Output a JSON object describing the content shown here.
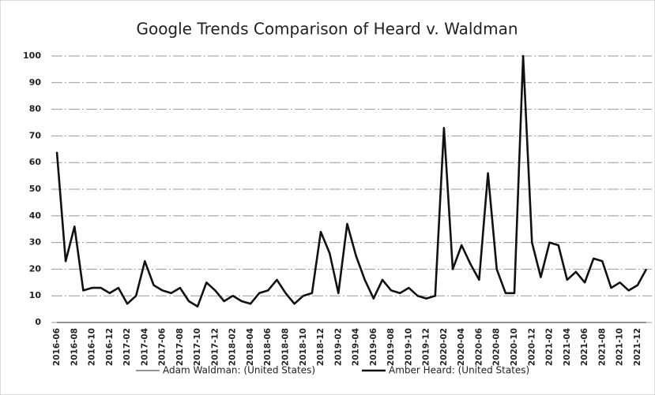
{
  "chart_data": {
    "type": "line",
    "title": "Google Trends Comparison of Heard v. Waldman",
    "categories": [
      "2016-06",
      null,
      "2016-08",
      null,
      "2016-10",
      null,
      "2016-12",
      null,
      "2017-02",
      null,
      "2017-04",
      null,
      "2017-06",
      null,
      "2017-08",
      null,
      "2017-10",
      null,
      "2017-12",
      null,
      "2018-02",
      null,
      "2018-04",
      null,
      "2018-06",
      null,
      "2018-08",
      null,
      "2018-10",
      null,
      "2018-12",
      null,
      "2019-02",
      null,
      "2019-04",
      null,
      "2019-06",
      null,
      "2019-08",
      null,
      "2019-10",
      null,
      "2019-12",
      null,
      "2020-02",
      null,
      "2020-04",
      null,
      "2020-06",
      null,
      "2020-08",
      null,
      "2020-10",
      null,
      "2020-12",
      null,
      "2021-02",
      null,
      "2021-04",
      null,
      "2021-06",
      null,
      "2021-08",
      null,
      "2021-10",
      null,
      "2021-12",
      null
    ],
    "series": [
      {
        "name": "Adam Waldman: (United States)",
        "color": "#555555",
        "width": 1.2,
        "values": [
          0,
          0,
          0,
          0,
          0,
          0,
          0,
          0,
          0,
          0,
          0,
          0,
          0,
          0,
          0,
          0,
          0,
          0,
          0,
          0,
          0,
          0,
          0,
          0,
          0,
          0,
          0,
          0,
          0,
          0,
          0,
          0,
          0,
          0,
          0,
          0,
          0,
          0,
          0,
          0,
          0,
          0,
          0,
          0,
          0,
          0,
          0,
          0,
          0,
          0,
          0,
          0,
          0,
          0,
          0,
          0,
          0,
          0,
          0,
          0,
          0,
          0,
          0,
          0,
          0,
          0,
          0,
          0
        ]
      },
      {
        "name": "Amber Heard: (United States)",
        "color": "#111111",
        "width": 2.6,
        "values": [
          64,
          23,
          36,
          12,
          13,
          13,
          11,
          13,
          7,
          10,
          23,
          14,
          12,
          11,
          13,
          8,
          6,
          15,
          12,
          8,
          10,
          8,
          7,
          11,
          12,
          16,
          11,
          7,
          10,
          11,
          34,
          26,
          11,
          37,
          25,
          16,
          9,
          16,
          12,
          11,
          13,
          10,
          9,
          10,
          73,
          20,
          29,
          22,
          16,
          56,
          20,
          11,
          11,
          100,
          30,
          17,
          30,
          29,
          16,
          19,
          15,
          24,
          23,
          13,
          15,
          12,
          14,
          20
        ]
      }
    ],
    "ylim": [
      0,
      100
    ],
    "yticks": [
      0,
      10,
      20,
      30,
      40,
      50,
      60,
      70,
      80,
      90,
      100
    ],
    "grid": true,
    "legend": "bottom"
  }
}
